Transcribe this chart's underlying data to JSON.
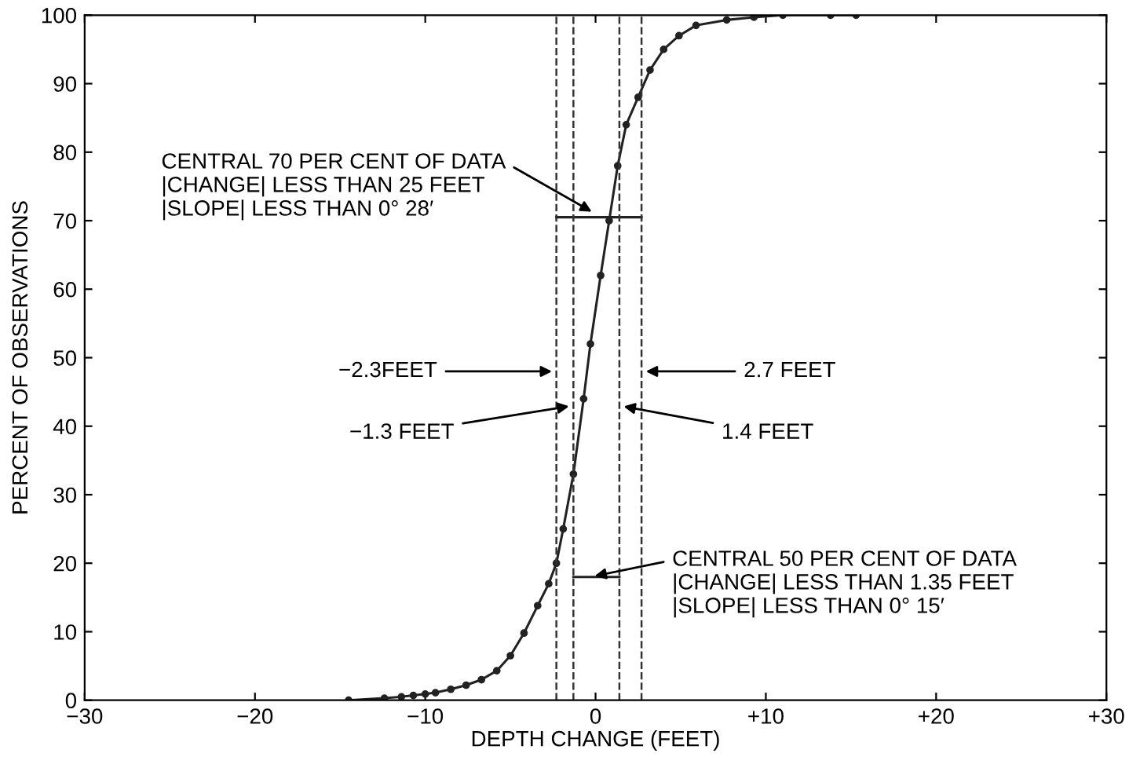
{
  "chart_data": {
    "type": "line",
    "xlabel": "DEPTH CHANGE (FEET)",
    "ylabel": "PERCENT OF OBSERVATIONS",
    "xlim": [
      -30,
      30
    ],
    "ylim": [
      0,
      100
    ],
    "xticks": [
      {
        "value": -30,
        "label": "−30"
      },
      {
        "value": -20,
        "label": "−20"
      },
      {
        "value": -10,
        "label": "−10"
      },
      0,
      {
        "value": 10,
        "label": "+10"
      },
      {
        "value": 20,
        "label": "+20"
      },
      {
        "value": 30,
        "label": "+30"
      }
    ],
    "yticks": [
      0,
      10,
      20,
      30,
      40,
      50,
      60,
      70,
      80,
      90,
      100
    ],
    "grid": false,
    "marker": "circle",
    "line_style": "solid",
    "series": [
      {
        "color": "#222222",
        "x": [
          -14.5,
          -12.4,
          -11.4,
          -10.7,
          -10,
          -9.4,
          -8.5,
          -7.6,
          -6.7,
          -5.8,
          -5,
          -4.2,
          -3.4,
          -2.75,
          -2.3,
          -1.9,
          -1.3,
          -0.7,
          -0.3,
          0.3,
          0.8,
          1.3,
          1.8,
          2.5,
          3.2,
          4,
          4.9,
          5.9,
          7.7,
          9.3,
          11,
          13.8,
          15.3
        ],
        "values": [
          0,
          0.3,
          0.5,
          0.7,
          0.9,
          1.1,
          1.6,
          2.2,
          3.0,
          4.3,
          6.5,
          9.8,
          13.8,
          17,
          20,
          25,
          33,
          44,
          52,
          62,
          70,
          78,
          84,
          88,
          92,
          95,
          97,
          98.5,
          99.3,
          99.7,
          100,
          100,
          100
        ]
      },
      {
        "type": "line",
        "marker": "none",
        "color": "#222222",
        "x": [
          -2.3,
          2.7
        ],
        "values": [
          70.5,
          70.5
        ]
      },
      {
        "type": "line",
        "marker": "none",
        "color": "#222222",
        "x": [
          -1.3,
          1.4
        ],
        "values": [
          18,
          18
        ]
      }
    ],
    "ref_lines": [
      {
        "axis": "x",
        "value": -2.3,
        "label": "−2.3FEET",
        "line_style": "dashed"
      },
      {
        "axis": "x",
        "value": -1.3,
        "label": "−1.3 FEET",
        "line_style": "dashed"
      },
      {
        "axis": "x",
        "value": 1.4,
        "label": "1.4 FEET",
        "line_style": "dashed"
      },
      {
        "axis": "x",
        "value": 2.7,
        "label": "2.7 FEET",
        "line_style": "dashed"
      }
    ],
    "annotations": [
      {
        "text": "CENTRAL 70 PER CENT OF DATA\n|CHANGE| LESS THAN 25 FEET\n|SLOPE| LESS THAN 0° 28′",
        "x": 0,
        "y": 71
      },
      {
        "text": "CENTRAL 50 PER CENT OF DATA\n|CHANGE| LESS THAN 1.35 FEET\n|SLOPE| LESS THAN 0° 15′",
        "x": -0.3,
        "y": 18
      }
    ]
  }
}
